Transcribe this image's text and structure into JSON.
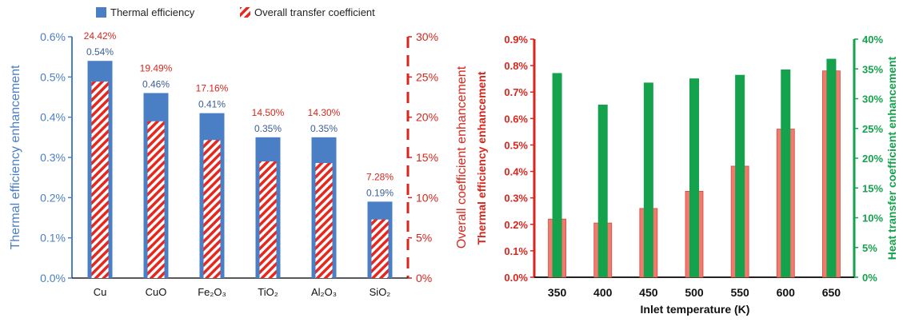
{
  "chart_data": [
    {
      "type": "bar",
      "categories": [
        "Cu",
        "CuO",
        "Fe₂O₃",
        "TiO₂",
        "Al₂O₃",
        "SiO₂"
      ],
      "series": [
        {
          "name": "Thermal efficiency",
          "axis": "left",
          "color": "#4a7fc6",
          "values": [
            0.54,
            0.46,
            0.41,
            0.35,
            0.35,
            0.19
          ],
          "labels": [
            "0.54%",
            "0.46%",
            "0.41%",
            "0.35%",
            "0.35%",
            "0.19%"
          ]
        },
        {
          "name": "Overall transfer coefficient",
          "axis": "right",
          "color": "#e8261c",
          "pattern": "diagonal-hatch",
          "values": [
            24.42,
            19.49,
            17.16,
            14.5,
            14.3,
            7.28
          ],
          "labels": [
            "24.42%",
            "19.49%",
            "17.16%",
            "14.50%",
            "14.30%",
            "7.28%"
          ]
        }
      ],
      "ylabel": "Thermal efficiency enhancement",
      "y2label": "Overall coefficient enhancement",
      "ylim": [
        0,
        0.6
      ],
      "yticks": [
        "0.0%",
        "0.1%",
        "0.2%",
        "0.3%",
        "0.4%",
        "0.5%",
        "0.6%"
      ],
      "y2lim": [
        0,
        30
      ],
      "y2ticks": [
        "0%",
        "5%",
        "10%",
        "15%",
        "20%",
        "25%",
        "30%"
      ],
      "legend": "top",
      "grid": false,
      "colors": {
        "left_axis": "#4a7fc6",
        "right_axis": "#d9261c",
        "label_left": "#3b5e97",
        "label_right": "#d9261c"
      }
    },
    {
      "type": "bar",
      "categories": [
        "350",
        "400",
        "450",
        "500",
        "550",
        "600",
        "650"
      ],
      "series": [
        {
          "axis": "left",
          "color": "#f07a6e",
          "values": [
            0.22,
            0.205,
            0.26,
            0.325,
            0.42,
            0.56,
            0.78
          ]
        },
        {
          "axis": "right",
          "color": "#14a24c",
          "values": [
            34.3,
            29.0,
            32.7,
            33.4,
            34.0,
            34.9,
            36.7
          ]
        }
      ],
      "xlabel": "Inlet temperature (K)",
      "ylabel": "Thermal efficiency enhancement",
      "y2label": "Heat transfer coefficient enhancement",
      "ylim": [
        0,
        0.9
      ],
      "yticks": [
        "0.0%",
        "0.1%",
        "0.2%",
        "0.3%",
        "0.4%",
        "0.5%",
        "0.6%",
        "0.7%",
        "0.8%",
        "0.9%"
      ],
      "y2lim": [
        0,
        40
      ],
      "y2ticks": [
        "0%",
        "5%",
        "10%",
        "15%",
        "20%",
        "25%",
        "30%",
        "35%",
        "40%"
      ],
      "grid": false,
      "colors": {
        "left_axis": "#d9261c",
        "right_axis": "#14a24c"
      }
    }
  ]
}
